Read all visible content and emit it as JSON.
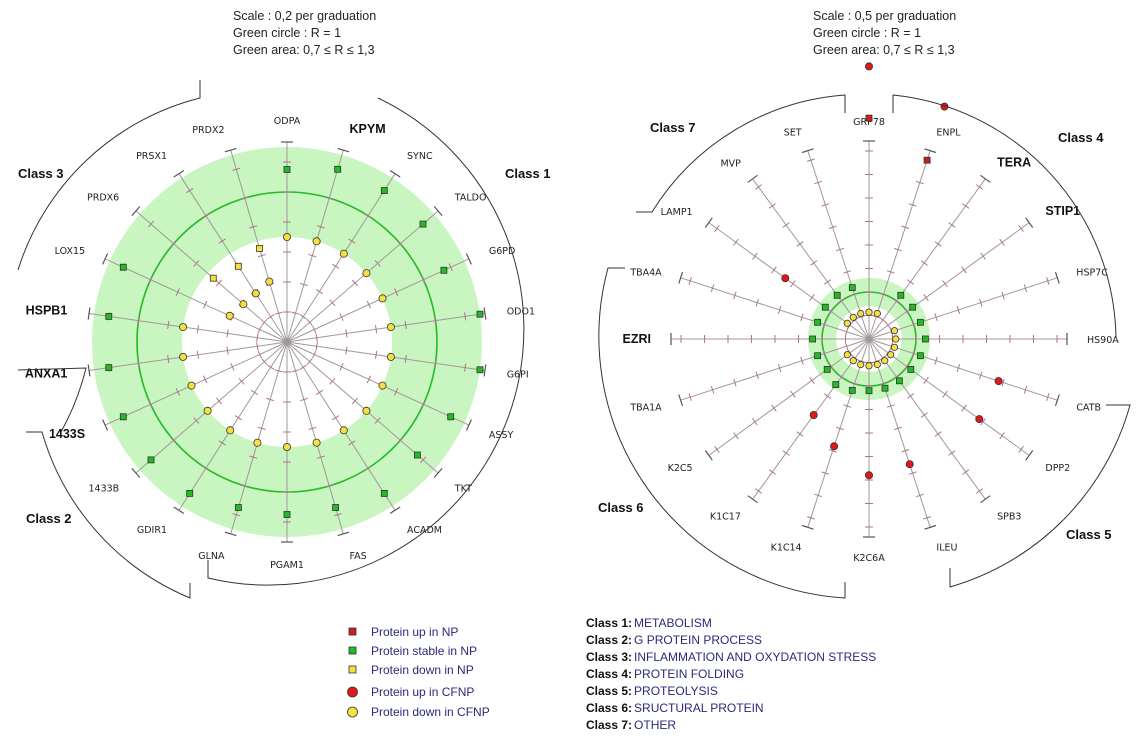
{
  "chart_data": [
    {
      "type": "radar",
      "header": [
        "Scale : 0,2 per graduation",
        "Green circle : R = 1",
        "Green area:  0,7 ≤ R  ≤ 1,3"
      ],
      "scale_per_graduation": 0.2,
      "reference_ratio": 1,
      "green_area": [
        0.7,
        1.3
      ],
      "axes": [
        {
          "label": "ODPA",
          "bold": false,
          "value": 1.15,
          "status": "stable"
        },
        {
          "label": "KPYM",
          "bold": true,
          "value": 1.2,
          "status": "stable"
        },
        {
          "label": "SYNC",
          "bold": false,
          "value": 1.2,
          "status": "stable"
        },
        {
          "label": "TALDO",
          "bold": false,
          "value": 1.2,
          "status": "stable"
        },
        {
          "label": "G6PD",
          "bold": false,
          "value": 1.15,
          "status": "stable"
        },
        {
          "label": "ODO1",
          "bold": false,
          "value": 1.3,
          "status": "stable"
        },
        {
          "label": "G6PI",
          "bold": false,
          "value": 1.3,
          "status": "stable"
        },
        {
          "label": "ASSY",
          "bold": false,
          "value": 1.2,
          "status": "stable"
        },
        {
          "label": "TKT",
          "bold": false,
          "value": 1.15,
          "status": "stable"
        },
        {
          "label": "ACADM",
          "bold": false,
          "value": 1.2,
          "status": "stable"
        },
        {
          "label": "FAS",
          "bold": false,
          "value": 1.15,
          "status": "stable"
        },
        {
          "label": "PGAM1",
          "bold": false,
          "value": 1.15,
          "status": "stable"
        },
        {
          "label": "GLNA",
          "bold": false,
          "value": 1.15,
          "status": "stable"
        },
        {
          "label": "GDIR1",
          "bold": false,
          "value": 1.2,
          "status": "stable"
        },
        {
          "label": "1433B",
          "bold": false,
          "value": 1.2,
          "status": "stable"
        },
        {
          "label": "1433S",
          "bold": true,
          "value": 1.2,
          "status": "stable"
        },
        {
          "label": "ANXA1",
          "bold": true,
          "value": 1.2,
          "status": "stable"
        },
        {
          "label": "HSPB1",
          "bold": true,
          "value": 1.2,
          "status": "stable"
        },
        {
          "label": "LOX15",
          "bold": false,
          "value": 1.2,
          "status": "stable"
        },
        {
          "label": "PRDX6",
          "bold": false,
          "value": 0.65,
          "status": "down"
        },
        {
          "label": "PRSX1",
          "bold": false,
          "value": 0.6,
          "status": "down"
        },
        {
          "label": "PRDX2",
          "bold": false,
          "value": 0.65,
          "status": "down"
        }
      ],
      "cfnp_down": [
        1.0,
        1.0,
        1.0,
        1.0,
        1.0,
        1.0,
        1.0,
        1.0,
        1.0,
        1.0,
        1.0,
        1.0,
        1.0,
        1.0,
        1.0,
        1.0,
        1.0,
        1.0,
        0.6,
        0.55,
        0.55,
        0.6
      ],
      "class_labels": [
        "Class 1",
        "Class 2",
        "Class 3"
      ]
    },
    {
      "type": "radar",
      "header": [
        "Scale : 0,5 per graduation",
        "Green circle : R = 1",
        "Green area:  0,7 ≤ R ≤ 1,3"
      ],
      "scale_per_graduation": 0.5,
      "reference_ratio": 1,
      "green_area": [
        0.7,
        1.3
      ],
      "axes": [
        {
          "label": "GRP78",
          "bold": false,
          "np_up": 4.7,
          "cfnp_up": 5.8
        },
        {
          "label": "ENPL",
          "bold": false,
          "np_up": 4.0,
          "cfnp_up": 5.2
        },
        {
          "label": "TERA",
          "bold": true,
          "stable": 1.15
        },
        {
          "label": "STIP1",
          "bold": true,
          "stable": 1.15
        },
        {
          "label": "HSP7C",
          "bold": false,
          "stable": 1.15
        },
        {
          "label": "HS90A",
          "bold": false,
          "stable": 1.2
        },
        {
          "label": "CATB",
          "bold": false,
          "stable": 1.15,
          "cfnp_up": 2.9
        },
        {
          "label": "DPP2",
          "bold": false,
          "stable": 1.1,
          "cfnp_up": 2.9
        },
        {
          "label": "SPB3",
          "bold": false,
          "stable": 1.1
        },
        {
          "label": "ILEU",
          "bold": false,
          "stable": 1.1,
          "cfnp_up": 2.8
        },
        {
          "label": "K2C6A",
          "bold": false,
          "stable": 1.1,
          "cfnp_up": 2.9
        },
        {
          "label": "K1C14",
          "bold": false,
          "stable": 1.15,
          "cfnp_up": 2.4
        },
        {
          "label": "K1C17",
          "bold": false,
          "stable": 1.2,
          "cfnp_up": 2.0
        },
        {
          "label": "K2C5",
          "bold": false,
          "stable": 1.1
        },
        {
          "label": "TBA1A",
          "bold": false,
          "stable": 1.15
        },
        {
          "label": "EZRI",
          "bold": true,
          "stable": 1.2
        },
        {
          "label": "TBA4A",
          "bold": false,
          "stable": 1.15
        },
        {
          "label": "LAMP1",
          "bold": false,
          "stable": 1.15,
          "cfnp_up": 2.2
        },
        {
          "label": "MVP",
          "bold": false,
          "stable": 1.15
        },
        {
          "label": "SET",
          "bold": false,
          "stable": 1.15
        }
      ],
      "cfnp_down_inner": 0.95,
      "class_labels": [
        "Class 7",
        "Class 4",
        "Class 6",
        "Class 5"
      ]
    }
  ],
  "legend": [
    {
      "label": "Protein up in NP",
      "marker": "square",
      "color": "#cc2020"
    },
    {
      "label": "Protein stable in NP",
      "marker": "square",
      "color": "#22bb22"
    },
    {
      "label": "Protein down in NP",
      "marker": "square",
      "color": "#f5e040"
    },
    {
      "label": "Protein up in CFNP",
      "marker": "circle",
      "color": "#e01818"
    },
    {
      "label": "Protein down in CFNP",
      "marker": "circle",
      "color": "#f5e040"
    }
  ],
  "classes": [
    {
      "key": "Class 1:",
      "text": "METABOLISM"
    },
    {
      "key": "Class 2:",
      "text": "G PROTEIN PROCESS"
    },
    {
      "key": "Class 3:",
      "text": "INFLAMMATION  AND  OXYDATION STRESS"
    },
    {
      "key": "Class 4:",
      "text": "PROTEIN FOLDING"
    },
    {
      "key": "Class 5:",
      "text": "PROTEOLYSIS"
    },
    {
      "key": "Class 6:",
      "text": "SRUCTURAL PROTEIN"
    },
    {
      "key": "Class 7:",
      "text": "OTHER"
    }
  ],
  "colors": {
    "green_area": "#c8f5c0",
    "green_circle": "#22bb22",
    "axis": "#a09898",
    "tick": "#b07090"
  }
}
